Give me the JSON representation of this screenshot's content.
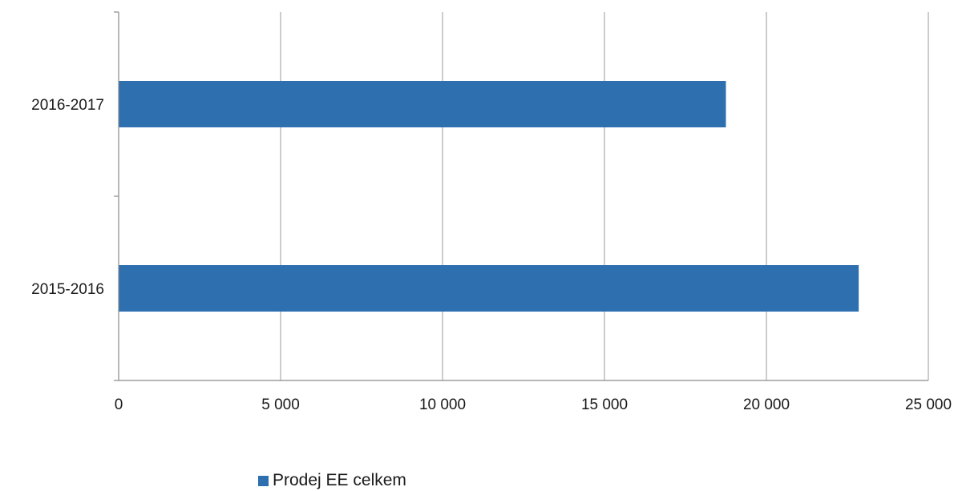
{
  "chart_data": {
    "type": "bar",
    "orientation": "horizontal",
    "categories": [
      "2016-2017",
      "2015-2016"
    ],
    "series": [
      {
        "name": "Prodej EE celkem",
        "values": [
          18750,
          22850
        ],
        "color": "#2e6fb0"
      }
    ],
    "x_ticks": [
      0,
      5000,
      10000,
      15000,
      20000,
      25000
    ],
    "x_tick_labels": [
      "0",
      "5 000",
      "10 000",
      "15 000",
      "20 000",
      "25 000"
    ],
    "xlim": [
      0,
      25000
    ],
    "grid": true,
    "legend_position": "bottom-left",
    "title": "",
    "xlabel": "",
    "ylabel": ""
  }
}
